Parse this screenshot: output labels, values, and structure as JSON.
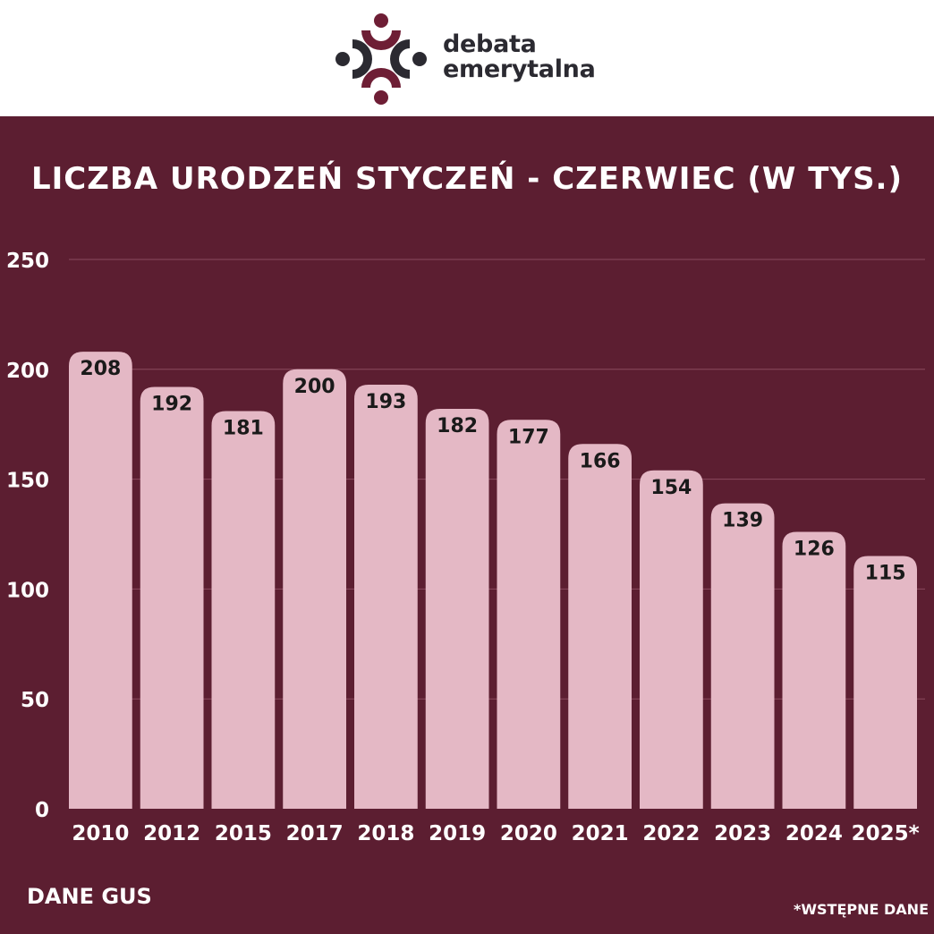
{
  "brand": {
    "line1": "debata",
    "line2": "emerytalna",
    "logo_icon": "people-circle-logo-icon"
  },
  "colors": {
    "background": "#5c1e31",
    "bar": "#e4b8c5",
    "bar_label": "#1a1a1a",
    "axis_text": "#ffffff",
    "gridline": "#8a4a5e",
    "logo_primary": "#6e1e35",
    "logo_secondary": "#2b2a31"
  },
  "source": "DANE GUS",
  "footnote": "*WSTĘPNE DANE",
  "chart_data": {
    "type": "bar",
    "title": "LICZBA URODZEŃ STYCZEŃ - CZERWIEC (W TYS.)",
    "xlabel": "",
    "ylabel": "",
    "categories": [
      "2010",
      "2012",
      "2015",
      "2017",
      "2018",
      "2019",
      "2020",
      "2021",
      "2022",
      "2023",
      "2024",
      "2025*"
    ],
    "values": [
      208,
      192,
      181,
      200,
      193,
      182,
      177,
      166,
      154,
      139,
      126,
      115
    ],
    "data_labels": [
      "208",
      "192",
      "181",
      "200",
      "193",
      "182",
      "177",
      "166",
      "154",
      "139",
      "126",
      "115"
    ],
    "ylim": [
      0,
      250
    ],
    "yticks": [
      0,
      50,
      100,
      150,
      200,
      250
    ],
    "ytick_labels": [
      "0",
      "50",
      "100",
      "150",
      "200",
      "250"
    ],
    "grid": true,
    "legend": "none"
  }
}
